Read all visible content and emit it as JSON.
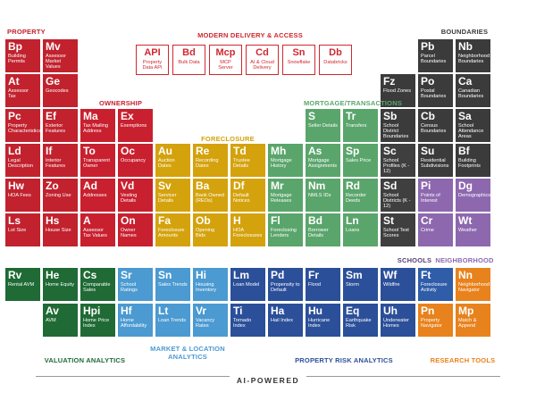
{
  "groups": [
    {
      "label": "PROPERTY",
      "tiles": [
        {
          "symbol": "Bp",
          "name": "Building Permits"
        },
        {
          "symbol": "Mv",
          "name": "Assessor Market Values"
        },
        {
          "symbol": "At",
          "name": "Assessor Tax"
        },
        {
          "symbol": "Ge",
          "name": "Geocodes"
        },
        {
          "symbol": "Pc",
          "name": "Property Characteristics"
        },
        {
          "symbol": "Ef",
          "name": "Exterior Features"
        },
        {
          "symbol": "Ld",
          "name": "Legal Description"
        },
        {
          "symbol": "If",
          "name": "Interior Features"
        },
        {
          "symbol": "Hw",
          "name": "HOA Fees"
        },
        {
          "symbol": "Zo",
          "name": "Zoning Use"
        },
        {
          "symbol": "Ls",
          "name": "Lot Size"
        },
        {
          "symbol": "Hs",
          "name": "House Size"
        }
      ]
    },
    {
      "label": "MODERN DELIVERY & ACCESS",
      "tiles": [
        {
          "symbol": "API",
          "name": "Property Data API"
        },
        {
          "symbol": "Bd",
          "name": "Bulk Data"
        },
        {
          "symbol": "Mcp",
          "name": "MCP Server"
        },
        {
          "symbol": "Cd",
          "name": "AI & Cloud Delivery"
        },
        {
          "symbol": "Sn",
          "name": "Snowflake"
        },
        {
          "symbol": "Db",
          "name": "Databricks"
        }
      ]
    },
    {
      "label": "BOUNDARIES",
      "tiles": [
        {
          "symbol": "Pb",
          "name": "Parcel Boundaries"
        },
        {
          "symbol": "Nb",
          "name": "Neighborhood Boundaries"
        },
        {
          "symbol": "Po",
          "name": "Postal Boundaries"
        },
        {
          "symbol": "Ca",
          "name": "Canadian Boundaries"
        },
        {
          "symbol": "Fz",
          "name": "Flood Zones"
        },
        {
          "symbol": "Sb",
          "name": "School District Boundaries"
        },
        {
          "symbol": "Cb",
          "name": "Census Boundaries"
        },
        {
          "symbol": "Sa",
          "name": "School Attendance Areas"
        },
        {
          "symbol": "Su",
          "name": "Residential Subdivisions"
        },
        {
          "symbol": "Bf",
          "name": "Building Footprints"
        }
      ]
    },
    {
      "label": "OWNERSHIP",
      "tiles": [
        {
          "symbol": "Ma",
          "name": "Tax Mailing Address"
        },
        {
          "symbol": "Ex",
          "name": "Exemptions"
        },
        {
          "symbol": "To",
          "name": "Transparent Owner"
        },
        {
          "symbol": "Oc",
          "name": "Occupancy"
        },
        {
          "symbol": "Ad",
          "name": "Addresses"
        },
        {
          "symbol": "Vd",
          "name": "Vesting Details"
        },
        {
          "symbol": "A",
          "name": "Assessor Tax Values"
        },
        {
          "symbol": "On",
          "name": "Owner Names"
        }
      ]
    },
    {
      "label": "FORECLOSURE",
      "tiles": [
        {
          "symbol": "Au",
          "name": "Auction Dates"
        },
        {
          "symbol": "Re",
          "name": "Recording Dates"
        },
        {
          "symbol": "Td",
          "name": "Trustee Details"
        },
        {
          "symbol": "Sv",
          "name": "Servicer Details"
        },
        {
          "symbol": "Ba",
          "name": "Bank Owned (REOs)"
        },
        {
          "symbol": "Df",
          "name": "Default Notices"
        },
        {
          "symbol": "Fa",
          "name": "Foreclosure Amounts"
        },
        {
          "symbol": "Ob",
          "name": "Opening Bids"
        },
        {
          "symbol": "H",
          "name": "HOA Foreclosures"
        }
      ]
    },
    {
      "label": "MORTGAGE/TRANSACTIONS",
      "tiles": [
        {
          "symbol": "S",
          "name": "Seller Details"
        },
        {
          "symbol": "Tr",
          "name": "Transfers"
        },
        {
          "symbol": "Mh",
          "name": "Mortgage History"
        },
        {
          "symbol": "As",
          "name": "Mortgage Assignments"
        },
        {
          "symbol": "Sp",
          "name": "Sales Price"
        },
        {
          "symbol": "Mr",
          "name": "Mortgage Releases"
        },
        {
          "symbol": "Nm",
          "name": "NMLS IDs"
        },
        {
          "symbol": "Rd",
          "name": "Recorder Deeds"
        },
        {
          "symbol": "Fl",
          "name": "Foreclosing Lenders"
        },
        {
          "symbol": "Bd",
          "name": "Borrower Details"
        },
        {
          "symbol": "Ln",
          "name": "Loans"
        }
      ]
    },
    {
      "label": "SCHOOLS",
      "tiles": [
        {
          "symbol": "Sc",
          "name": "School Profiles (K - 12)"
        },
        {
          "symbol": "Sd",
          "name": "School Districts (K - 12)"
        },
        {
          "symbol": "St",
          "name": "School Test Scores"
        }
      ]
    },
    {
      "label": "NEIGHBORHOOD",
      "tiles": [
        {
          "symbol": "Pi",
          "name": "Points of Interest"
        },
        {
          "symbol": "Dg",
          "name": "Demographics"
        },
        {
          "symbol": "Cr",
          "name": "Crime"
        },
        {
          "symbol": "Wt",
          "name": "Weather"
        }
      ]
    },
    {
      "label": "VALUATION ANALYTICS",
      "tiles": [
        {
          "symbol": "Rv",
          "name": "Rental AVM"
        },
        {
          "symbol": "He",
          "name": "Home Equity"
        },
        {
          "symbol": "Cs",
          "name": "Comparable Sales"
        },
        {
          "symbol": "Av",
          "name": "AVM"
        },
        {
          "symbol": "Hpi",
          "name": "Home Price Index"
        }
      ]
    },
    {
      "label": "MARKET & LOCATION ANALYTICS",
      "tiles": [
        {
          "symbol": "Sr",
          "name": "School Ratings"
        },
        {
          "symbol": "Sn",
          "name": "Sales Trends"
        },
        {
          "symbol": "Hi",
          "name": "Housing Inventory"
        },
        {
          "symbol": "Hf",
          "name": "Home Affordability"
        },
        {
          "symbol": "Lt",
          "name": "Loan Trends"
        },
        {
          "symbol": "Vr",
          "name": "Vacancy Rates"
        }
      ]
    },
    {
      "label": "PROPERTY RISK ANALYTICS",
      "tiles": [
        {
          "symbol": "Lm",
          "name": "Loan Model"
        },
        {
          "symbol": "Pd",
          "name": "Propensity to Default"
        },
        {
          "symbol": "Fr",
          "name": "Flood"
        },
        {
          "symbol": "Sm",
          "name": "Storm"
        },
        {
          "symbol": "Wf",
          "name": "Wildfire"
        },
        {
          "symbol": "Ft",
          "name": "Foreclosure Activity"
        },
        {
          "symbol": "Ti",
          "name": "Tornado Index"
        },
        {
          "symbol": "Ha",
          "name": "Hail Index"
        },
        {
          "symbol": "Hu",
          "name": "Hurricane Index"
        },
        {
          "symbol": "Eq",
          "name": "Earthquake Risk"
        },
        {
          "symbol": "Uh",
          "name": "Underwater Homes"
        }
      ]
    },
    {
      "label": "RESEARCH TOOLS",
      "tiles": [
        {
          "symbol": "Nn",
          "name": "Neighborhood Navigator"
        },
        {
          "symbol": "Pn",
          "name": "Property Navigator"
        },
        {
          "symbol": "Mp",
          "name": "Match & Append"
        }
      ]
    }
  ],
  "footer": "AI-POWERED"
}
